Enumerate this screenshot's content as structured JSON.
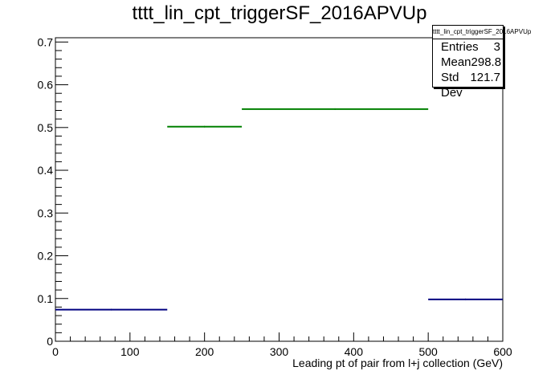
{
  "title": "tttt_lin_cpt_triggerSF_2016APVUp",
  "stats": {
    "name": "tttt_lin_cpt_triggerSF_2016APVUp",
    "rows": [
      {
        "label": "Entries",
        "value": "3"
      },
      {
        "label": "Mean",
        "value": "298.8"
      },
      {
        "label": "Std Dev",
        "value": "121.7"
      }
    ]
  },
  "chart_data": {
    "type": "bar",
    "title": "tttt_lin_cpt_triggerSF_2016APVUp",
    "xlabel": "Leading pt of pair from l+j collection (GeV)",
    "ylabel": "",
    "xlim": [
      0,
      600
    ],
    "ylim": [
      0,
      0.71
    ],
    "xticks": [
      0,
      100,
      200,
      300,
      400,
      500,
      600
    ],
    "yticks": [
      0,
      0.1,
      0.2,
      0.3,
      0.4,
      0.5,
      0.6,
      0.7
    ],
    "grid": false,
    "bins": [
      {
        "low": 0,
        "high": 150,
        "value": 0.074,
        "color": "#000080"
      },
      {
        "low": 150,
        "high": 250,
        "value": 0.502,
        "color": "#008000"
      },
      {
        "low": 250,
        "high": 500,
        "value": 0.543,
        "color": "#008000"
      },
      {
        "low": 500,
        "high": 600,
        "value": 0.098,
        "color": "#000080"
      }
    ]
  }
}
